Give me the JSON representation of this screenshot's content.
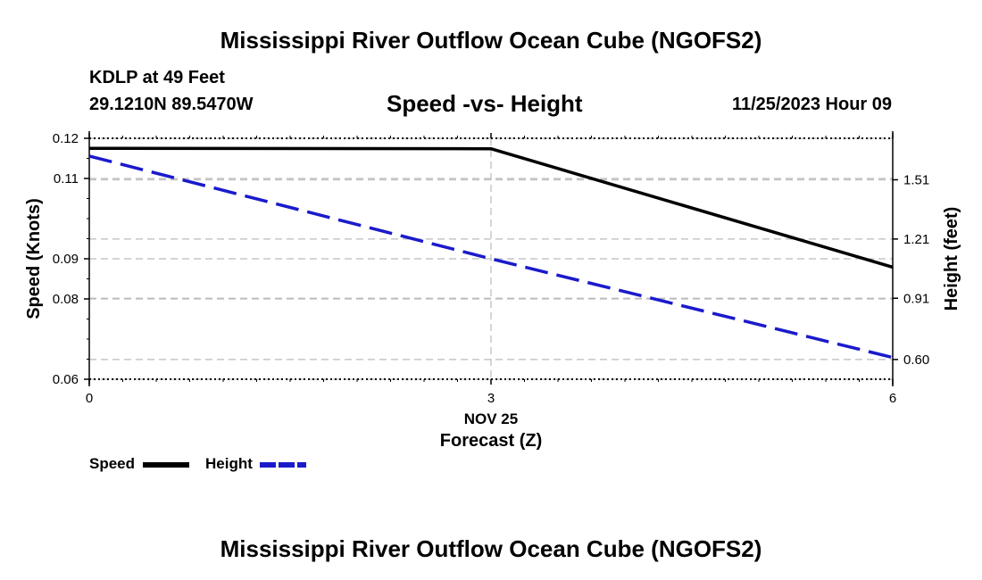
{
  "header": {
    "title": "Mississippi River Outflow Ocean Cube (NGOFS2)",
    "station": "KDLP at 49 Feet",
    "coords": "29.1210N  89.5470W",
    "subtitle": "Speed -vs- Height",
    "datetime": "11/25/2023 Hour 09"
  },
  "footer": {
    "title": "Mississippi River Outflow Ocean Cube (NGOFS2)"
  },
  "colors": {
    "speed": "#000000",
    "height": "#1a1acc",
    "grid": "#bbbbbb"
  },
  "chart_data": {
    "type": "line",
    "title": "Speed -vs- Height",
    "xlabel": "Forecast (Z)",
    "ylabel": "Speed (Knots)",
    "y2label": "Height (feet)",
    "x": [
      0,
      3,
      6
    ],
    "x_tick_labels": [
      "0",
      "3",
      "6"
    ],
    "x_date_label": "NOV 25",
    "xlim": [
      0,
      6
    ],
    "ylim": [
      0.06,
      0.12
    ],
    "y_ticks": [
      0.06,
      0.08,
      0.09,
      0.11,
      0.12
    ],
    "y_tick_labels": [
      "0.06",
      "0.08",
      "0.09",
      "0.11",
      "0.12"
    ],
    "y2lim": [
      0.5,
      1.72
    ],
    "y2_ticks": [
      0.6,
      0.91,
      1.21,
      1.51
    ],
    "y2_tick_labels": [
      "0.60",
      "0.91",
      "1.21",
      "1.51"
    ],
    "series": [
      {
        "name": "Speed",
        "axis": "left",
        "style": "solid",
        "values": [
          0.1175,
          0.1174,
          0.0879
        ]
      },
      {
        "name": "Height",
        "axis": "right",
        "style": "dashed",
        "values": [
          1.63,
          1.11,
          0.61
        ]
      }
    ],
    "legend": {
      "speed_label": "Speed",
      "height_label": "Height",
      "position": "bottom-left"
    }
  }
}
